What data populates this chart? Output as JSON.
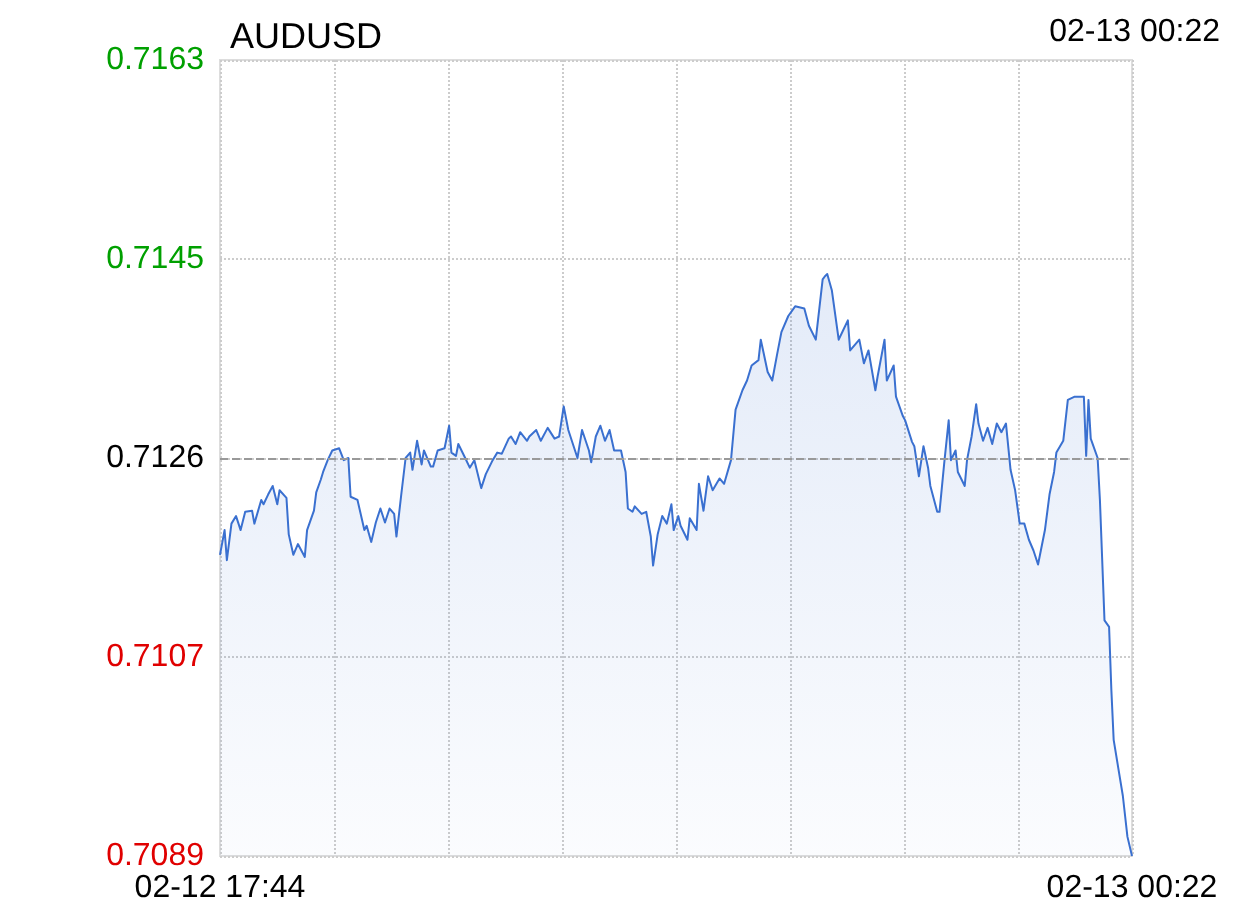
{
  "chart_data": {
    "type": "area",
    "title": "AUDUSD",
    "annotations": [
      "02-13 00:22"
    ],
    "x": [
      "--02-12T17:44",
      "--02-12T17:46",
      "--02-12T17:47",
      "--02-12T17:49",
      "--02-12T17:51",
      "--02-12T17:53",
      "--02-12T17:55",
      "--02-12T17:58",
      "--02-12T17:59",
      "--02-12T18:02",
      "--02-12T18:03",
      "--02-12T18:05",
      "--02-12T18:07",
      "--02-12T18:09",
      "--02-12T18:10",
      "--02-12T18:13",
      "--02-12T18:14",
      "--02-12T18:16",
      "--02-12T18:18",
      "--02-12T18:21",
      "--02-12T18:22",
      "--02-12T18:25",
      "--02-12T18:26",
      "--02-12T18:28",
      "--02-12T18:29",
      "--02-12T18:31",
      "--02-12T18:33",
      "--02-12T18:36",
      "--02-12T18:38",
      "--02-12T18:40",
      "--02-12T18:41",
      "--02-12T18:44",
      "--02-12T18:47",
      "--02-12T18:48",
      "--02-12T18:50",
      "--02-12T18:52",
      "--02-12T18:54",
      "--02-12T18:56",
      "--02-12T18:58",
      "--02-12T19:00",
      "--02-12T19:01",
      "--02-12T19:03",
      "--02-12T19:05",
      "--02-12T19:07",
      "--02-12T19:08",
      "--02-12T19:10",
      "--02-12T19:12",
      "--02-12T19:13",
      "--02-12T19:16",
      "--02-12T19:17",
      "--02-12T19:19",
      "--02-12T19:22",
      "--02-12T19:24",
      "--02-12T19:25",
      "--02-12T19:27",
      "--02-12T19:28",
      "--02-12T19:31",
      "--02-12T19:33",
      "--02-12T19:35",
      "--02-12T19:38",
      "--02-12T19:40",
      "--02-12T19:43",
      "--02-12T19:45",
      "--02-12T19:47",
      "--02-12T19:50",
      "--02-12T19:51",
      "--02-12T19:53",
      "--02-12T19:55",
      "--02-12T19:58",
      "--02-12T19:59",
      "--02-12T20:02",
      "--02-12T20:04",
      "--02-12T20:07",
      "--02-12T20:10",
      "--02-12T20:12",
      "--02-12T20:14",
      "--02-12T20:16",
      "--02-12T20:18",
      "--02-12T20:20",
      "--02-12T20:22",
      "--02-12T20:25",
      "--02-12T20:26",
      "--02-12T20:28",
      "--02-12T20:30",
      "--02-12T20:32",
      "--02-12T20:34",
      "--02-12T20:36",
      "--02-12T20:39",
      "--02-12T20:41",
      "--02-12T20:42",
      "--02-12T20:44",
      "--02-12T20:45",
      "--02-12T20:48",
      "--02-12T20:50",
      "--02-12T20:52",
      "--02-12T20:53",
      "--02-12T20:55",
      "--02-12T20:57",
      "--02-12T20:59",
      "--02-12T21:01",
      "--02-12T21:02",
      "--02-12T21:04",
      "--02-12T21:05",
      "--02-12T21:08",
      "--02-12T21:09",
      "--02-12T21:12",
      "--02-12T21:13",
      "--02-12T21:15",
      "--02-12T21:17",
      "--02-12T21:19",
      "--02-12T21:22",
      "--02-12T21:24",
      "--02-12T21:27",
      "--02-12T21:29",
      "--02-12T21:32",
      "--02-12T21:34",
      "--02-12T21:36",
      "--02-12T21:39",
      "--02-12T21:40",
      "--02-12T21:43",
      "--02-12T21:45",
      "--02-12T21:47",
      "--02-12T21:49",
      "--02-12T21:52",
      "--02-12T21:55",
      "--02-12T21:59",
      "--02-12T22:01",
      "--02-12T22:04",
      "--02-12T22:07",
      "--02-12T22:08",
      "--02-12T22:09",
      "--02-12T22:11",
      "--02-12T22:14",
      "--02-12T22:16",
      "--02-12T22:18",
      "--02-12T22:19",
      "--02-12T22:23",
      "--02-12T22:25",
      "--02-12T22:27",
      "--02-12T22:30",
      "--02-12T22:31",
      "--02-12T22:34",
      "--02-12T22:35",
      "--02-12T22:38",
      "--02-12T22:39",
      "--02-12T22:42",
      "--02-12T22:43",
      "--02-12T22:46",
      "--02-12T22:47",
      "--02-12T22:49",
      "--02-12T22:51",
      "--02-12T22:53",
      "--02-12T22:54",
      "--02-12T22:57",
      "--02-12T22:58",
      "--02-12T23:00",
      "--02-12T23:02",
      "--02-12T23:03",
      "--02-12T23:05",
      "--02-12T23:06",
      "--02-12T23:09",
      "--02-12T23:10",
      "--02-12T23:12",
      "--02-12T23:14",
      "--02-12T23:15",
      "--02-12T23:17",
      "--02-12T23:19",
      "--02-12T23:21",
      "--02-12T23:23",
      "--02-12T23:25",
      "--02-12T23:27",
      "--02-12T23:29",
      "--02-12T23:31",
      "--02-12T23:33",
      "--02-12T23:35",
      "--02-12T23:37",
      "--02-12T23:39",
      "--02-12T23:41",
      "--02-12T23:44",
      "--02-12T23:46",
      "--02-12T23:48",
      "--02-12T23:49",
      "--02-12T23:52",
      "--02-12T23:54",
      "--02-12T23:57",
      "--02-13T00:01",
      "--02-13T00:02",
      "--02-13T00:03",
      "--02-13T00:04",
      "--02-13T00:07",
      "--02-13T00:08",
      "--02-13T00:10",
      "--02-13T00:12",
      "--02-13T00:13",
      "--02-13T00:14",
      "--02-13T00:16",
      "--02-13T00:18",
      "--02-13T00:20",
      "--02-13T00:22"
    ],
    "series": [
      {
        "color": "#3a70d0",
        "values": [
          0.7117,
          0.71193,
          0.71165,
          0.71199,
          0.71206,
          0.71193,
          0.7121,
          0.71211,
          0.71199,
          0.71221,
          0.71217,
          0.71226,
          0.71234,
          0.71217,
          0.7123,
          0.71223,
          0.71189,
          0.7117,
          0.7118,
          0.71168,
          0.71193,
          0.71211,
          0.71228,
          0.7124,
          0.71247,
          0.71258,
          0.71267,
          0.71269,
          0.71258,
          0.7126,
          0.71224,
          0.71221,
          0.71193,
          0.71197,
          0.71182,
          0.712,
          0.71213,
          0.712,
          0.71213,
          0.71208,
          0.71187,
          0.71224,
          0.7126,
          0.71265,
          0.71249,
          0.71276,
          0.71254,
          0.71267,
          0.71252,
          0.71252,
          0.71267,
          0.71269,
          0.7129,
          0.71265,
          0.71262,
          0.71273,
          0.7126,
          0.71251,
          0.71258,
          0.71232,
          0.71245,
          0.71258,
          0.71265,
          0.71264,
          0.71278,
          0.7128,
          0.71273,
          0.71284,
          0.71276,
          0.7128,
          0.71286,
          0.71276,
          0.71288,
          0.71278,
          0.7128,
          0.71308,
          0.71286,
          0.71273,
          0.7126,
          0.71286,
          0.71267,
          0.71256,
          0.7128,
          0.7129,
          0.71276,
          0.71286,
          0.71267,
          0.71267,
          0.71247,
          0.71213,
          0.7121,
          0.71215,
          0.71208,
          0.7121,
          0.71187,
          0.7116,
          0.71189,
          0.71206,
          0.71199,
          0.71217,
          0.71193,
          0.71206,
          0.71197,
          0.71184,
          0.71204,
          0.71193,
          0.71236,
          0.71211,
          0.71243,
          0.7123,
          0.71241,
          0.71236,
          0.71258,
          0.71305,
          0.71323,
          0.71332,
          0.71346,
          0.71351,
          0.7137,
          0.7134,
          0.71332,
          0.71355,
          0.71377,
          0.71392,
          0.71401,
          0.71399,
          0.71383,
          0.7137,
          0.71426,
          0.71429,
          0.71431,
          0.71416,
          0.7137,
          0.71379,
          0.71388,
          0.7136,
          0.7137,
          0.71348,
          0.7136,
          0.71323,
          0.71336,
          0.7137,
          0.71332,
          0.71346,
          0.71317,
          0.71299,
          0.71295,
          0.71275,
          0.71271,
          0.71243,
          0.71271,
          0.71251,
          0.71234,
          0.7121,
          0.7121,
          0.71254,
          0.71295,
          0.71258,
          0.71267,
          0.71247,
          0.71234,
          0.71258,
          0.7128,
          0.7131,
          0.71292,
          0.71276,
          0.71288,
          0.71273,
          0.71292,
          0.71284,
          0.71292,
          0.71249,
          0.7123,
          0.71199,
          0.71199,
          0.71184,
          0.71174,
          0.71161,
          0.71193,
          0.71226,
          0.71247,
          0.71265,
          0.71276,
          0.71314,
          0.71317,
          0.71317,
          0.71262,
          0.71314,
          0.71278,
          0.7126,
          0.71221,
          0.71109,
          0.71103,
          0.71044,
          0.70998,
          0.70972,
          0.70946,
          0.70908,
          0.7089
        ]
      }
    ],
    "xlim": [
      "--02-12T17:44",
      "--02-13T00:22"
    ],
    "xticks": [
      {
        "value": "--02-12T17:44",
        "label": "02-12 17:44"
      },
      {
        "value": "--02-12T18:34",
        "label": null
      },
      {
        "value": "--02-12T19:24",
        "label": null
      },
      {
        "value": "--02-12T20:13",
        "label": null
      },
      {
        "value": "--02-12T21:03",
        "label": null
      },
      {
        "value": "--02-12T21:53",
        "label": null
      },
      {
        "value": "--02-12T22:43",
        "label": null
      },
      {
        "value": "--02-12T23:32",
        "label": null
      },
      {
        "value": "--02-13T00:22",
        "label": "02-13 00:22"
      }
    ],
    "ylim": [
      0.7089,
      0.7163
    ],
    "yticks": [
      0.7089,
      {
        "value": 0.71075,
        "label": "0.7107"
      },
      0.7126,
      {
        "value": 0.71445,
        "label": "0.7145"
      },
      0.7163
    ],
    "ref_lines": [
      {
        "axis": "y",
        "value": 0.7126,
        "color": "#999999",
        "line_style": "dashed"
      }
    ],
    "grid": true
  }
}
